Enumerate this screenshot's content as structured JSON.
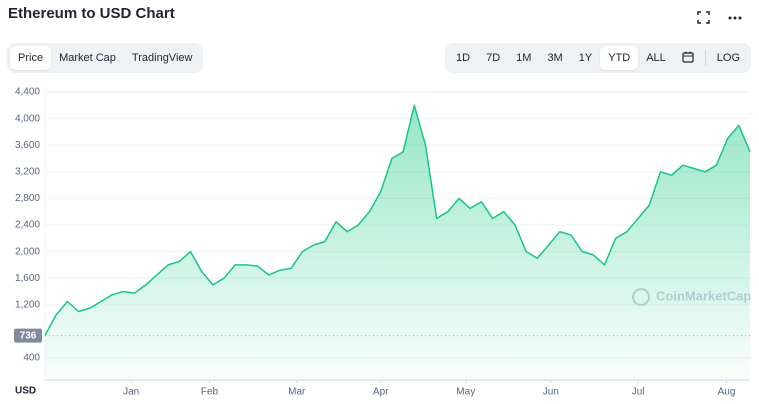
{
  "header": {
    "title": "Ethereum to USD Chart"
  },
  "tabs": [
    "Price",
    "Market Cap",
    "TradingView"
  ],
  "active_tab": "Price",
  "ranges": [
    "1D",
    "7D",
    "1M",
    "3M",
    "1Y",
    "YTD",
    "ALL"
  ],
  "active_range": "YTD",
  "log_button": "LOG",
  "chart_data": {
    "type": "area",
    "y_axis_label": "USD",
    "watermark": "CoinMarketCap",
    "color": "#16c784",
    "values": [
      740,
      1050,
      1250,
      1100,
      1150,
      1250,
      1350,
      1400,
      1375,
      1500,
      1650,
      1800,
      1850,
      2000,
      1700,
      1500,
      1600,
      1800,
      1800,
      1780,
      1650,
      1720,
      1750,
      2000,
      2100,
      2150,
      2450,
      2300,
      2400,
      2600,
      2900,
      3400,
      3500,
      4200,
      3600,
      2500,
      2600,
      2800,
      2650,
      2750,
      2500,
      2600,
      2400,
      2000,
      1900,
      2100,
      2300,
      2250,
      2000,
      1950,
      1800,
      2200,
      2300,
      2500,
      2700,
      3200,
      3150,
      3300,
      3250,
      3200,
      3300,
      3700,
      3900,
      3500
    ],
    "reference_line": 736,
    "xlim": [
      0,
      63
    ],
    "xticks": [
      {
        "value": 7.7,
        "label": "Jan"
      },
      {
        "value": 14.7,
        "label": "Feb"
      },
      {
        "value": 22.5,
        "label": "Mar"
      },
      {
        "value": 30,
        "label": "Apr"
      },
      {
        "value": 37.6,
        "label": "May"
      },
      {
        "value": 45.2,
        "label": "Jun"
      },
      {
        "value": 53,
        "label": "Jul"
      },
      {
        "value": 60.9,
        "label": "Aug"
      }
    ],
    "ylim": [
      0,
      4500
    ],
    "yticks": [
      400,
      {
        "value": 1200,
        "label": "1,200"
      },
      {
        "value": 1600,
        "label": "1,600"
      },
      {
        "value": 2000,
        "label": "2,000"
      },
      {
        "value": 2400,
        "label": "2,400"
      },
      {
        "value": 2800,
        "label": "2,800"
      },
      {
        "value": 3200,
        "label": "3,200"
      },
      {
        "value": 3600,
        "label": "3,600"
      },
      {
        "value": 4000,
        "label": "4,000"
      },
      {
        "value": 4400,
        "label": "4,400"
      }
    ],
    "grid": true
  }
}
